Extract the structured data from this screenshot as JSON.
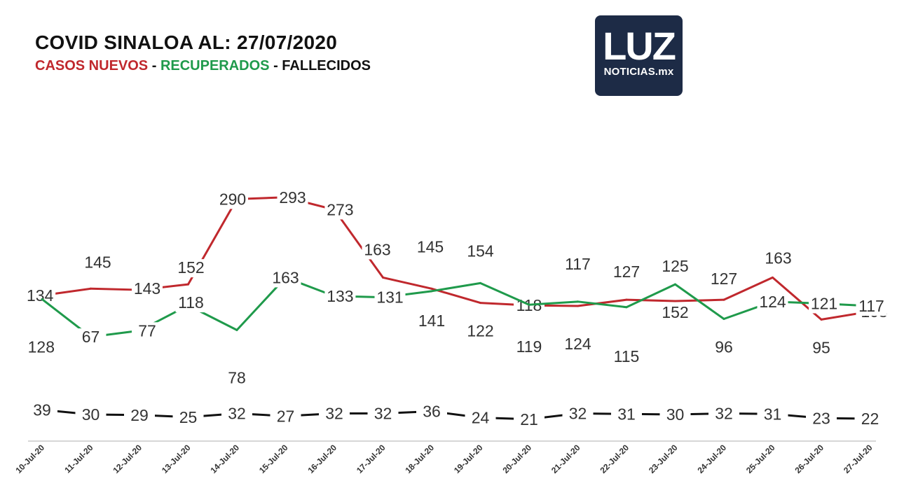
{
  "header": {
    "title": "COVID SINALOA AL: 27/07/2020",
    "legend_casos": "CASOS NUEVOS",
    "legend_recuperados": "RECUPERADOS",
    "legend_fallecidos": "FALLECIDOS",
    "separator": " - "
  },
  "logo": {
    "mark": "LUZ",
    "sub": "NOTICIAS.mx"
  },
  "colors": {
    "casos": "#c0282d",
    "recuperados": "#1f9a4b",
    "fallecidos": "#111111"
  },
  "chart_data": {
    "type": "line",
    "categories": [
      "10-Jul-20",
      "11-Jul-20",
      "12-Jul-20",
      "13-Jul-20",
      "14-Jul-20",
      "15-Jul-20",
      "16-Jul-20",
      "17-Jul-20",
      "18-Jul-20",
      "19-Jul-20",
      "20-Jul-20",
      "21-Jul-20",
      "22-Jul-20",
      "23-Jul-20",
      "24-Jul-20",
      "25-Jul-20",
      "26-Jul-20",
      "27-Jul-20"
    ],
    "series": [
      {
        "name": "CASOS NUEVOS",
        "color": "#c0282d",
        "values": [
          134,
          145,
          143,
          152,
          290,
          293,
          273,
          163,
          145,
          122,
          118,
          117,
          127,
          125,
          127,
          163,
          95,
          108
        ]
      },
      {
        "name": "RECUPERADOS",
        "color": "#1f9a4b",
        "values": [
          128,
          67,
          77,
          118,
          78,
          163,
          133,
          131,
          141,
          154,
          119,
          124,
          115,
          152,
          96,
          124,
          121,
          117
        ]
      },
      {
        "name": "FALLECIDOS",
        "color": "#111111",
        "values": [
          39,
          30,
          29,
          25,
          32,
          27,
          32,
          32,
          36,
          24,
          21,
          32,
          31,
          30,
          32,
          31,
          23,
          22
        ]
      }
    ],
    "title": "COVID SINALOA AL: 27/07/2020",
    "xlabel": "",
    "ylabel": "",
    "grid": false,
    "legend": "top-left"
  }
}
